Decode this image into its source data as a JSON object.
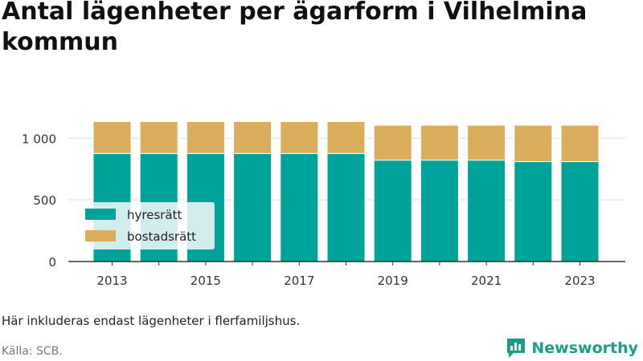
{
  "title": "Antal lägenheter per ägarform i Vilhelmina kommun",
  "note": "Här inkluderas endast lägenheter i flerfamiljshus.",
  "source": "Källa: SCB.",
  "brand": "Newsworthy",
  "colors": {
    "hyresratt": "#00a39a",
    "bostadsratt": "#d9ad5c",
    "grid": "#dddddd",
    "axis": "#333333",
    "brand": "#1f9d8c"
  },
  "chart_data": {
    "type": "bar",
    "stacked": true,
    "x": [
      2013,
      2014,
      2015,
      2016,
      2017,
      2018,
      2019,
      2020,
      2021,
      2022,
      2023
    ],
    "x_tick_labels": [
      "2013",
      "2015",
      "2017",
      "2019",
      "2021",
      "2023"
    ],
    "series": [
      {
        "name": "hyresrätt",
        "values": [
          876,
          876,
          876,
          876,
          876,
          876,
          822,
          822,
          822,
          810,
          810
        ]
      },
      {
        "name": "bostadsrätt",
        "values": [
          259,
          259,
          259,
          259,
          259,
          259,
          283,
          283,
          283,
          295,
          295
        ]
      }
    ],
    "y_ticks": [
      0,
      500,
      1000
    ],
    "y_tick_labels": [
      "0",
      "500",
      "1 000"
    ],
    "ylim": [
      0,
      1340
    ],
    "grid": true,
    "legend_position": "bottom-left"
  }
}
